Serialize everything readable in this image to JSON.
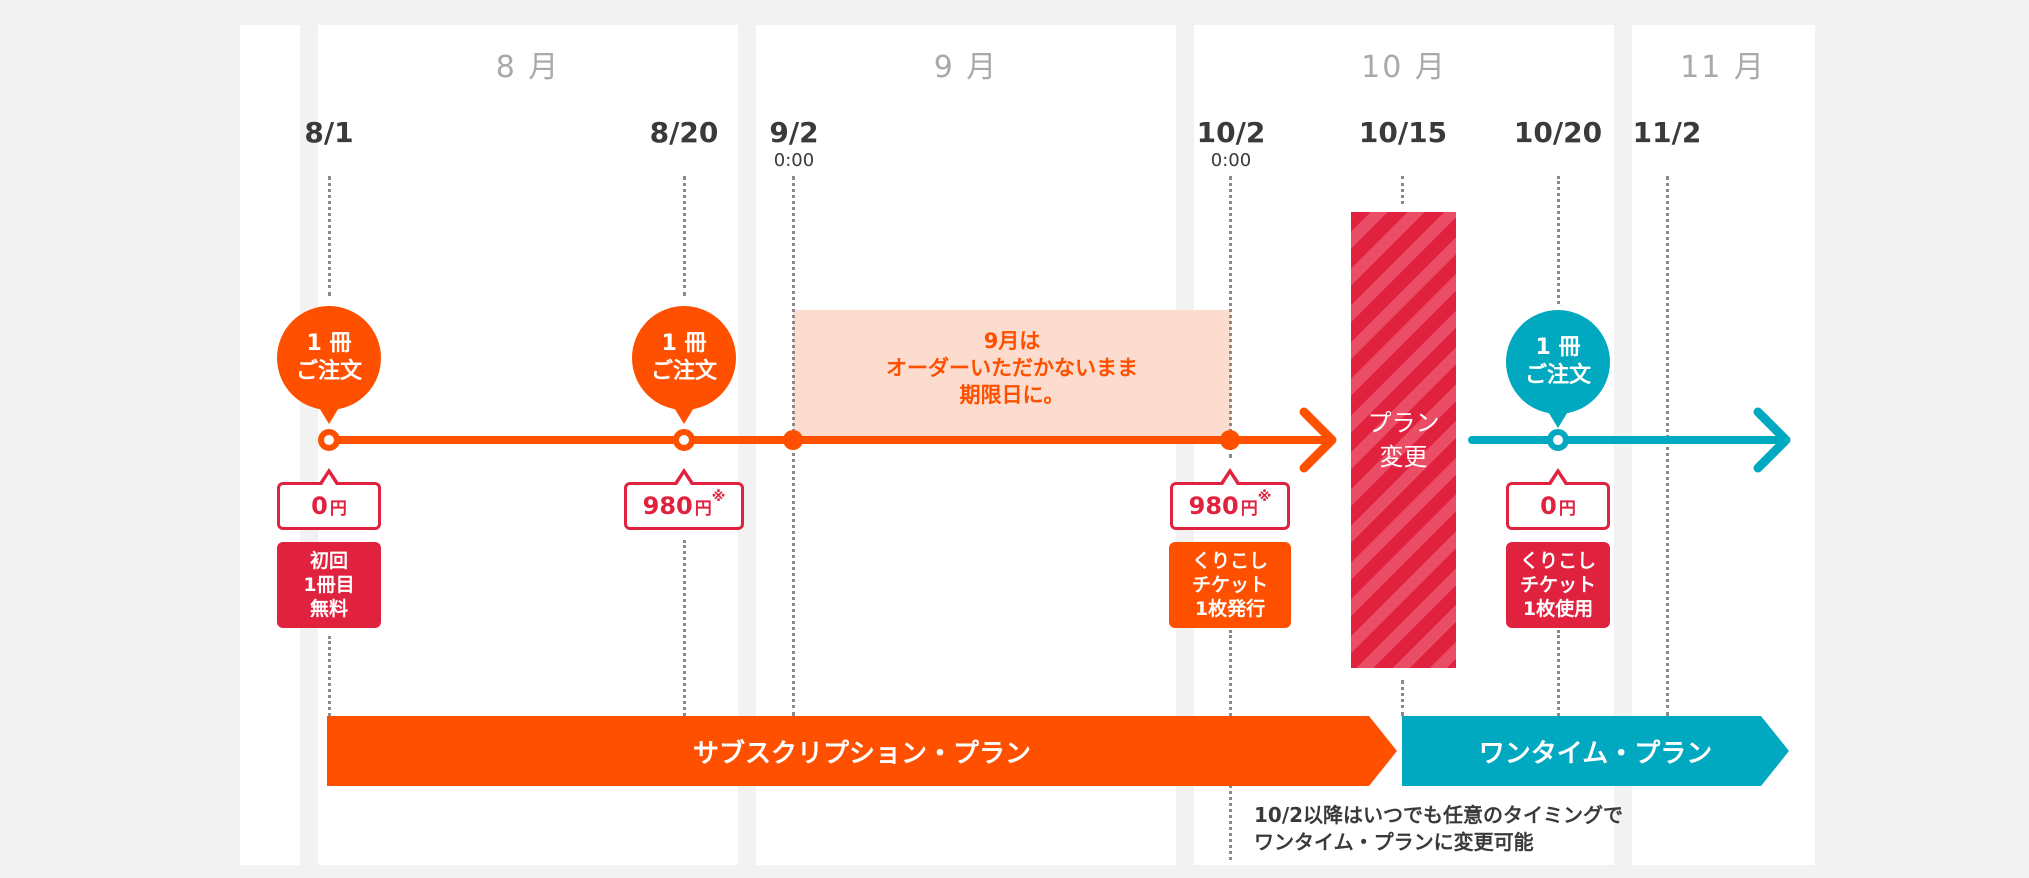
{
  "colors": {
    "subscription": "#ff5000",
    "onetime": "#00a8c0",
    "ticket_red": "#e0223f",
    "pause_fill": "#fcdcce"
  },
  "months": {
    "aug": "8 月",
    "sep": "9 月",
    "oct": "10 月",
    "nov": "11 月"
  },
  "dates": {
    "aug1": "8/1",
    "aug20": "8/20",
    "sep2": "9/2",
    "oct2": "10/2",
    "oct15": "10/15",
    "oct20": "10/20",
    "nov2": "11/2"
  },
  "times": {
    "sep2": "0:00",
    "oct2": "0:00"
  },
  "order_bubbles": {
    "aug1": [
      "1 冊",
      "ご注文"
    ],
    "aug20": [
      "1 冊",
      "ご注文"
    ],
    "oct20": [
      "1 冊",
      "ご注文"
    ]
  },
  "pause_note": [
    "9月は",
    "オーダーいただかないまま",
    "期限日に。"
  ],
  "plan_change": [
    "プラン",
    "変更"
  ],
  "prices": {
    "aug1": {
      "amount": "0",
      "unit": "円",
      "mark": ""
    },
    "aug20": {
      "amount": "980",
      "unit": "円",
      "mark": "※"
    },
    "oct2": {
      "amount": "980",
      "unit": "円",
      "mark": "※"
    },
    "oct20": {
      "amount": "0",
      "unit": "円",
      "mark": ""
    }
  },
  "labels": {
    "first_free": [
      "初回",
      "1冊目",
      "無料"
    ],
    "ticket_issue": [
      "くりこし",
      "チケット",
      "1枚発行"
    ],
    "ticket_use": [
      "くりこし",
      "チケット",
      "1枚使用"
    ]
  },
  "bands": {
    "subscription": "サブスクリプション・プラン",
    "onetime": "ワンタイム・プラン"
  },
  "note": [
    "10/2以降はいつでも任意のタイミングで",
    "ワンタイム・プランに変更可能"
  ]
}
